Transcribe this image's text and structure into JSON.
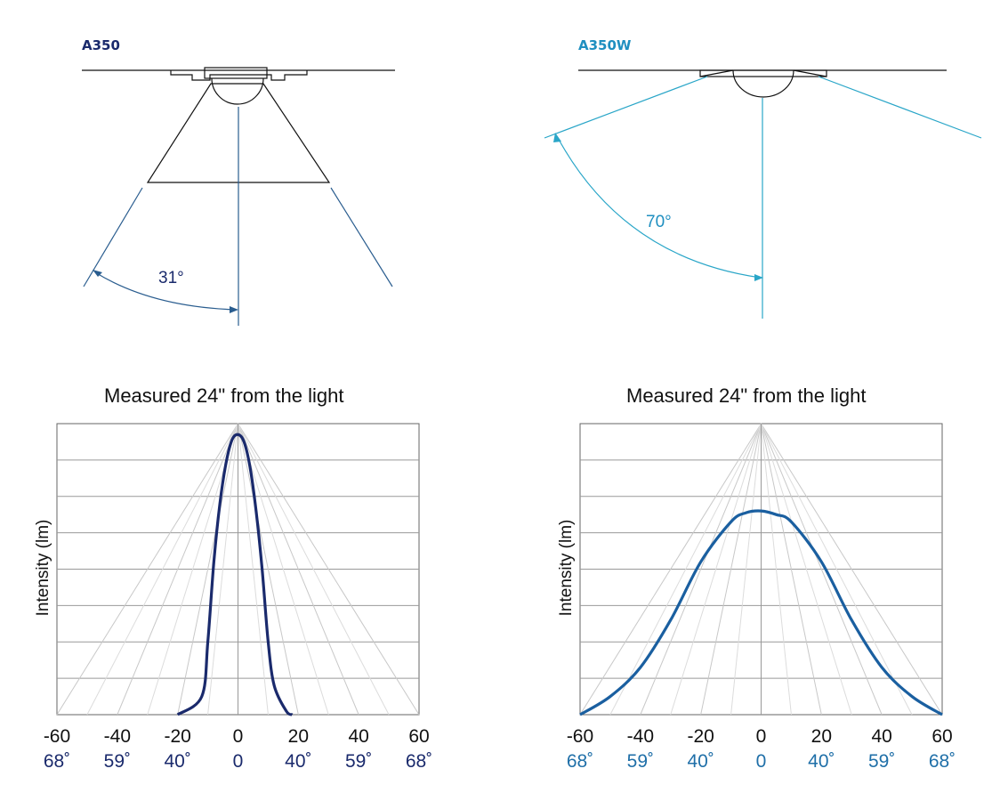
{
  "products": [
    {
      "name": "A350",
      "color": "#1a2a6c",
      "beam_angle": "31°"
    },
    {
      "name": "A350W",
      "color": "#1f8fc0",
      "beam_angle": "70°"
    }
  ],
  "chart_data": [
    {
      "type": "line",
      "title": "Measured 24\" from the light",
      "ylabel": "Intensity (lm)",
      "xlabel": "",
      "x_ticks": [
        "-60",
        "-40",
        "-20",
        "0",
        "20",
        "40",
        "60"
      ],
      "angle_ticks": [
        "68˚",
        "59˚",
        "40˚",
        "0",
        "40˚",
        "59˚",
        "68˚"
      ],
      "angle_tick_color": "#1a2a6c",
      "xlim": [
        -60,
        60
      ],
      "ylim": [
        0,
        8
      ],
      "grid": true,
      "series": [
        {
          "color": "#1a2a6c",
          "x": [
            -20,
            -12,
            -10,
            -8,
            -6,
            -4,
            -2,
            0,
            2,
            4,
            6,
            8,
            10,
            12,
            16,
            18
          ],
          "y": [
            0,
            0.5,
            2.0,
            4.2,
            5.8,
            6.9,
            7.55,
            7.7,
            7.5,
            6.8,
            5.6,
            4.0,
            2.0,
            0.8,
            0.1,
            0
          ]
        }
      ]
    },
    {
      "type": "line",
      "title": "Measured 24\" from the light",
      "ylabel": "Intensity (lm)",
      "xlabel": "",
      "x_ticks": [
        "-60",
        "-40",
        "-20",
        "0",
        "20",
        "40",
        "60"
      ],
      "angle_ticks": [
        "68˚",
        "59˚",
        "40˚",
        "0",
        "40˚",
        "59˚",
        "68˚"
      ],
      "angle_tick_color": "#1f6fa8",
      "xlim": [
        -60,
        60
      ],
      "ylim": [
        0,
        8
      ],
      "grid": true,
      "series": [
        {
          "color": "#1a5fa0",
          "x": [
            -60,
            -50,
            -40,
            -30,
            -20,
            -10,
            -5,
            0,
            5,
            10,
            20,
            30,
            40,
            50,
            60
          ],
          "y": [
            0,
            0.5,
            1.3,
            2.6,
            4.2,
            5.3,
            5.55,
            5.6,
            5.5,
            5.3,
            4.2,
            2.6,
            1.3,
            0.5,
            0
          ]
        }
      ]
    }
  ]
}
